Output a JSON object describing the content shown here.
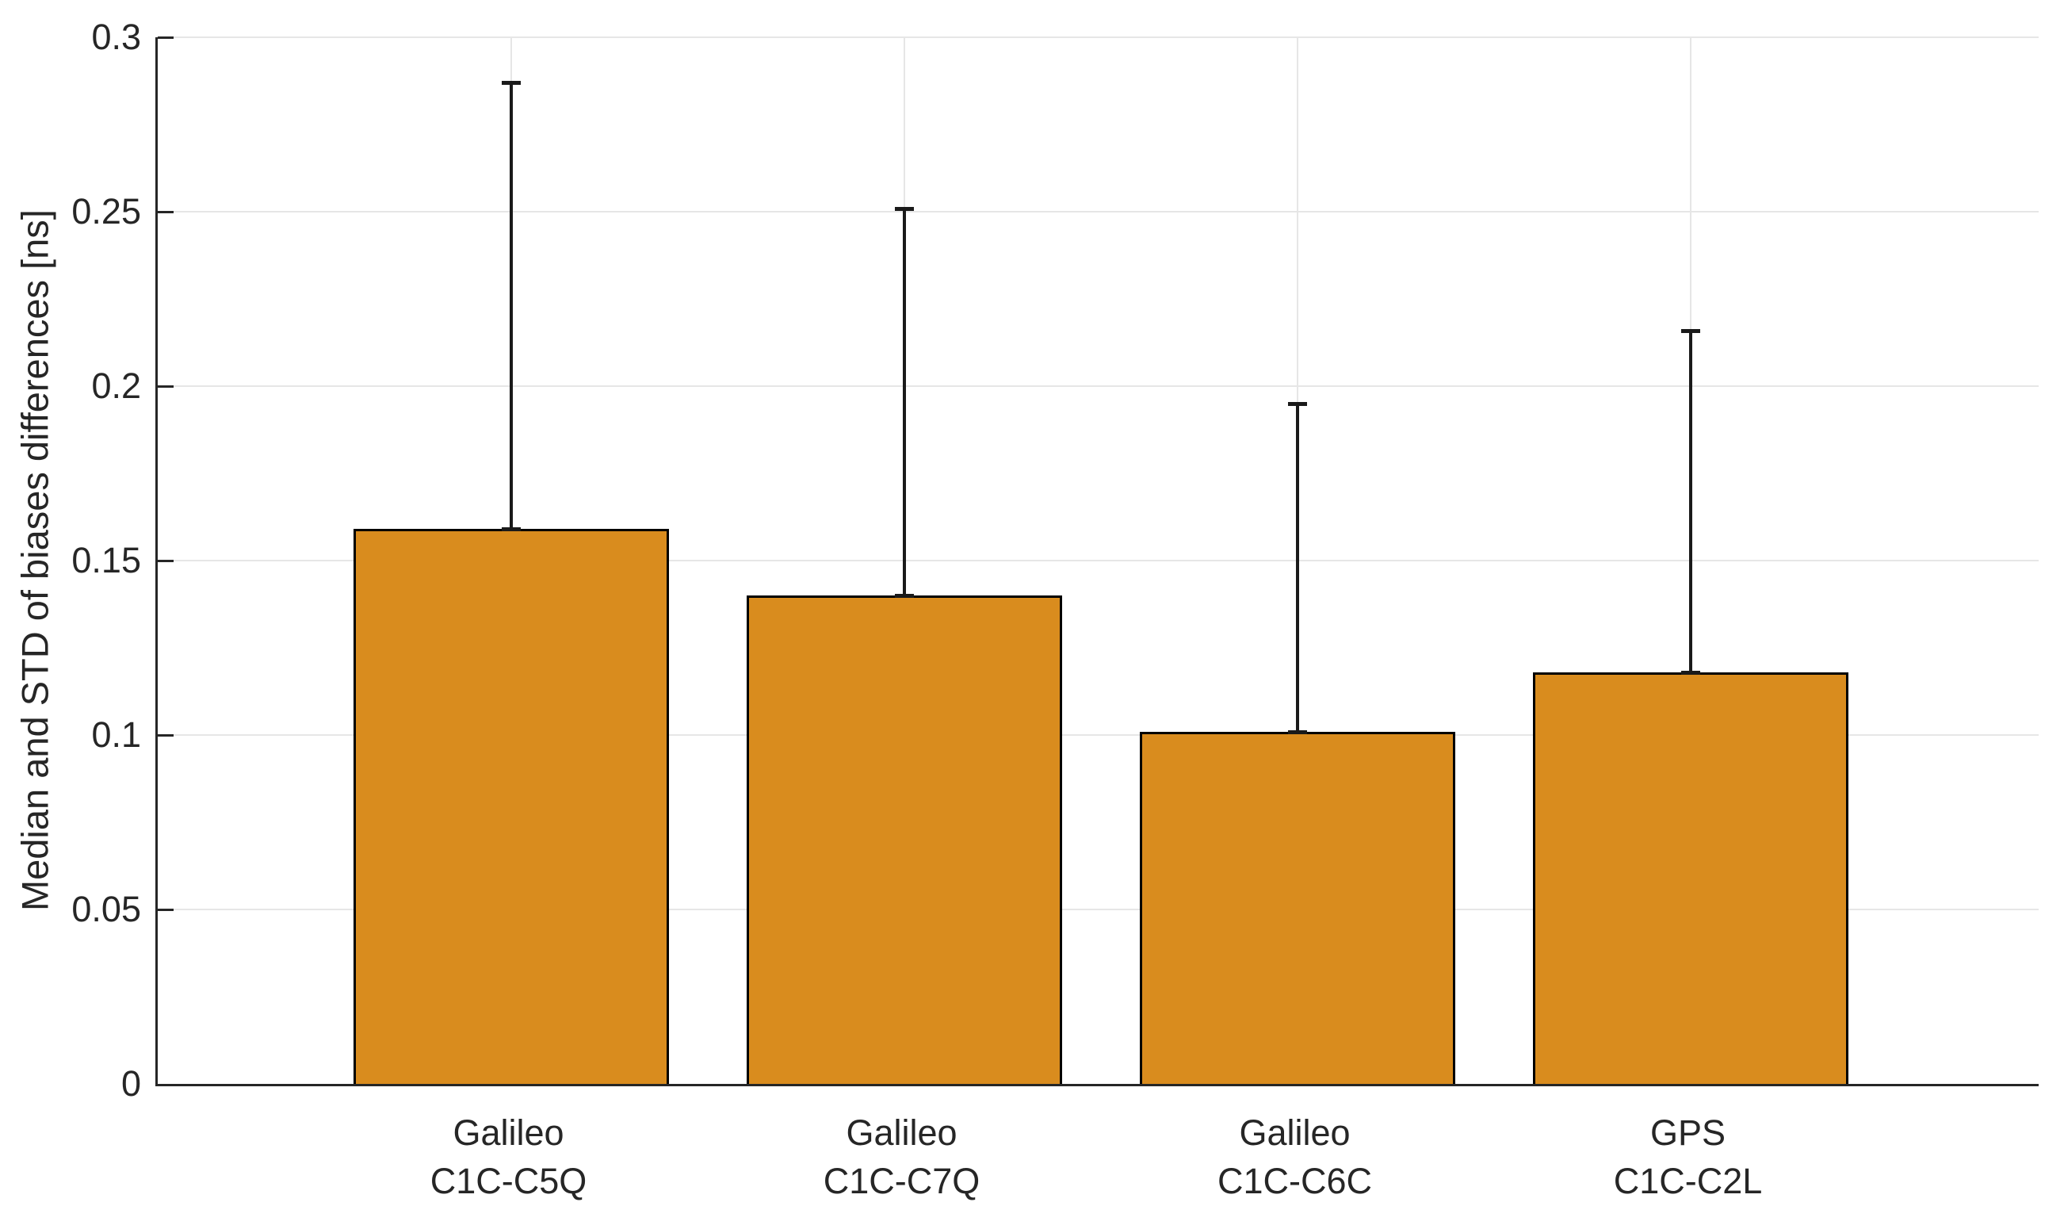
{
  "chart_data": {
    "type": "bar",
    "title": "",
    "xlabel": "",
    "ylabel": "Median and STD of biases differences [ns]",
    "categories": [
      [
        "Galileo",
        "C1C-C5Q"
      ],
      [
        "Galileo",
        "C1C-C7Q"
      ],
      [
        "Galileo",
        "C1C-C6C"
      ],
      [
        "GPS",
        "C1C-C2L"
      ]
    ],
    "series": [
      {
        "name": "Median",
        "values": [
          0.159,
          0.14,
          0.101,
          0.118
        ]
      },
      {
        "name": "STD (upper whisker length)",
        "values": [
          0.128,
          0.111,
          0.094,
          0.098
        ]
      }
    ],
    "values": [
      0.159,
      0.14,
      0.101,
      0.118
    ],
    "error_top": [
      0.287,
      0.251,
      0.195,
      0.216
    ],
    "ylim": [
      0,
      0.3
    ],
    "yticks": [
      0,
      0.05,
      0.1,
      0.15,
      0.2,
      0.25,
      0.3
    ],
    "ytick_labels": [
      "0",
      "0.05",
      "0.1",
      "0.15",
      "0.2",
      "0.25",
      "0.3"
    ],
    "grid": "both",
    "legend_position": "none",
    "colors": {
      "bar_fill": "#D98C1E",
      "bar_edge": "#000000",
      "error_bar": "#1A1A1A",
      "gridline": "#E6E6E6",
      "axis": "#262626",
      "background": "#FFFFFF"
    }
  }
}
